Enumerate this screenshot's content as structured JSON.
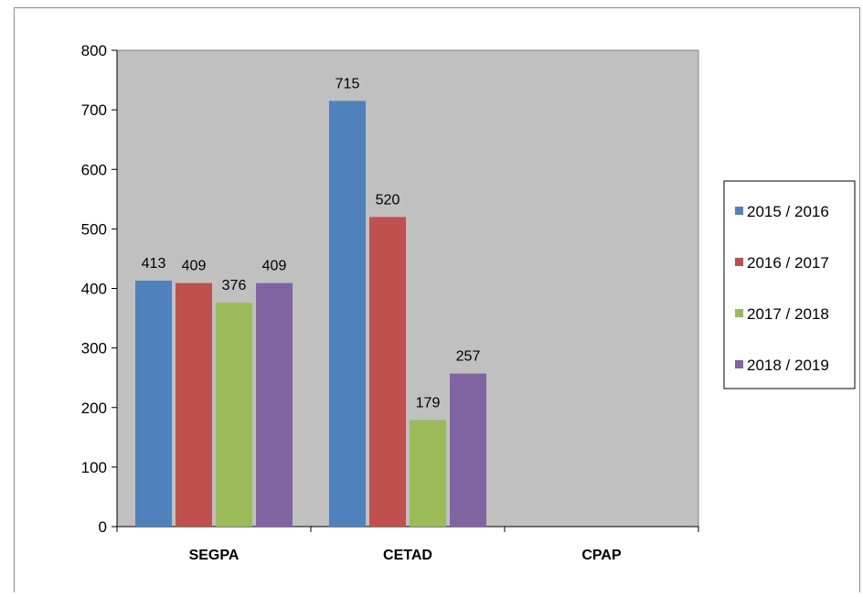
{
  "chart_data": {
    "type": "bar",
    "title": "",
    "xlabel": "",
    "ylabel": "",
    "categories": [
      "SEGPA",
      "CETAD",
      "CPAP"
    ],
    "ylim": [
      0,
      800
    ],
    "yticks": [
      0,
      100,
      200,
      300,
      400,
      500,
      600,
      700,
      800
    ],
    "grid": false,
    "plot_background": "#c0c0c0",
    "legend_position": "right",
    "series": [
      {
        "name": "2015 / 2016",
        "color": "#4f81bd",
        "values": [
          413,
          715,
          null
        ]
      },
      {
        "name": "2016 / 2017",
        "color": "#c0504d",
        "values": [
          409,
          520,
          null
        ]
      },
      {
        "name": "2017 / 2018",
        "color": "#9bbb59",
        "values": [
          376,
          179,
          null
        ]
      },
      {
        "name": "2018 / 2019",
        "color": "#8064a2",
        "values": [
          409,
          257,
          null
        ]
      }
    ]
  }
}
